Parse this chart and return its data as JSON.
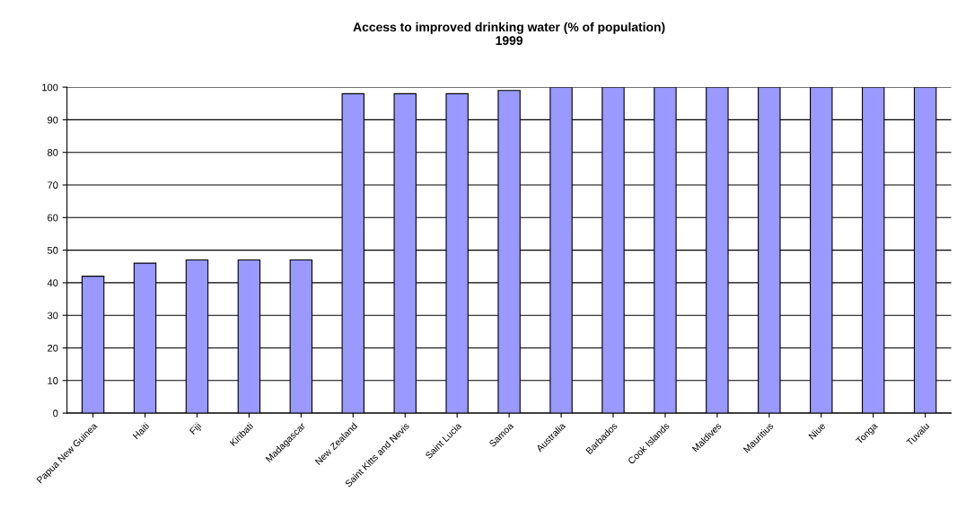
{
  "chart_data": {
    "type": "bar",
    "title": "Access to improved drinking water (% of population)\n1999",
    "categories": [
      "Papua New Guinea",
      "Haiti",
      "Fiji",
      "Kiribati",
      "Madagascar",
      "New Zealand",
      "Saint Kitts and Nevis",
      "Saint Lucia",
      "Samoa",
      "Australia",
      "Barbados",
      "Cook Islands",
      "Maldives",
      "Mauritius",
      "Niue",
      "Tonga",
      "Tuvalu"
    ],
    "values": [
      42,
      46,
      47,
      47,
      47,
      98,
      98,
      98,
      99,
      100,
      100,
      100,
      100,
      100,
      100,
      100,
      100
    ],
    "color": "#9999ff",
    "ylim": [
      0,
      100
    ],
    "yticks": [
      0,
      10,
      20,
      30,
      40,
      50,
      60,
      70,
      80,
      90,
      100
    ],
    "grid": "y"
  }
}
